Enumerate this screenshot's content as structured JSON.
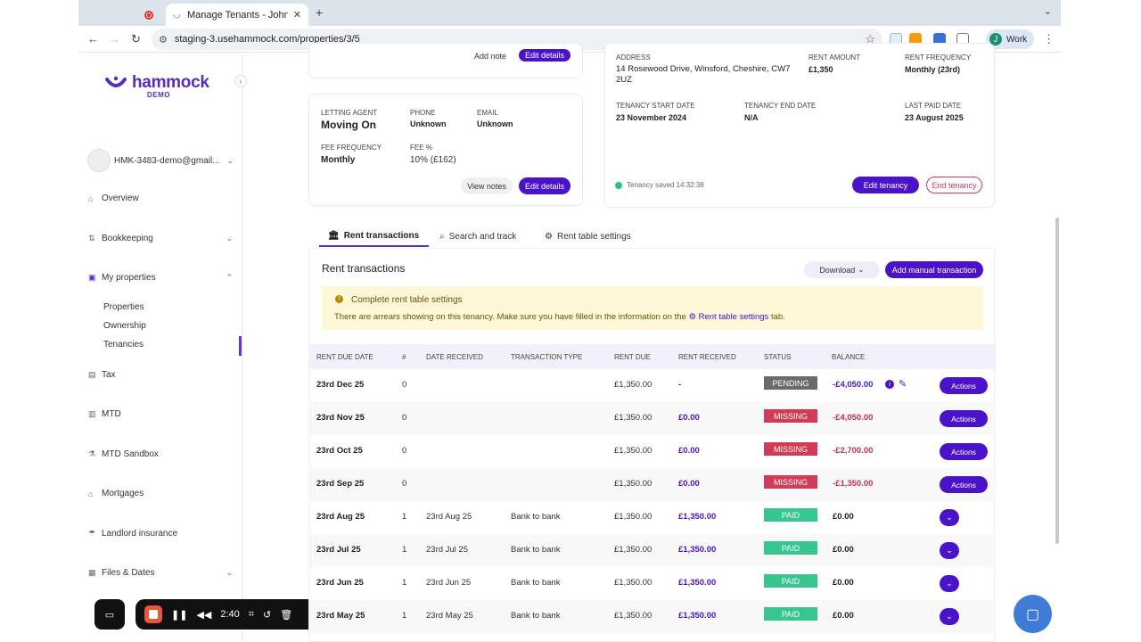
{
  "browser": {
    "tab_title": "Manage Tenants - John Smith",
    "new_tab": "+",
    "url": "staging-3.usehammock.com/properties/3/5",
    "profile": "Work",
    "profile_initial": "J"
  },
  "sidebar": {
    "logo": "hammock",
    "logo_sub": "DEMO",
    "account_email": "HMK-3483-demo@gmail...",
    "items": [
      {
        "label": "Overview",
        "icon": "home-icon"
      },
      {
        "label": "Bookkeeping",
        "icon": "sort-icon"
      },
      {
        "label": "My properties",
        "icon": "building-icon"
      },
      {
        "label": "Tax",
        "icon": "document-icon"
      },
      {
        "label": "MTD",
        "icon": "folder-icon"
      },
      {
        "label": "MTD Sandbox",
        "icon": "flask-icon"
      },
      {
        "label": "Mortgages",
        "icon": "bank-icon"
      },
      {
        "label": "Landlord insurance",
        "icon": "umbrella-icon"
      },
      {
        "label": "Files & Dates",
        "icon": "file-icon"
      }
    ],
    "sub_items": [
      "Properties",
      "Ownership",
      "Tenancies"
    ]
  },
  "recorder": {
    "time": "2:40"
  },
  "agent_card": {
    "add_note": "Add note",
    "edit_details_top": "Edit details",
    "letting_agent_label": "LETTING AGENT",
    "letting_agent": "Moving On",
    "phone_label": "PHONE",
    "phone": "Unknown",
    "email_label": "EMAIL",
    "email": "Unknown",
    "fee_frequency_label": "FEE FREQUENCY",
    "fee_frequency": "Monthly",
    "fee_pct_label": "FEE %",
    "fee_pct": "10% (£162)",
    "view_notes": "View notes",
    "edit_details": "Edit details"
  },
  "tenancy_card": {
    "address_label": "ADDRESS",
    "address": "14 Rosewood Drive, Winsford, Cheshire, CW7 2UZ",
    "rent_amount_label": "RENT AMOUNT",
    "rent_amount": "£1,350",
    "rent_frequency_label": "RENT FREQUENCY",
    "rent_frequency": "Monthly (23rd)",
    "start_label": "TENANCY START DATE",
    "start": "23 November 2024",
    "end_label": "TENANCY END DATE",
    "end": "N/A",
    "last_paid_label": "LAST PAID DATE",
    "last_paid": "23 August 2025",
    "saved": "Tenancy saved 14:32:38",
    "edit_tenancy": "Edit tenancy",
    "end_tenancy": "End tenancy"
  },
  "tabs": [
    {
      "label": "Rent transactions",
      "icon": "bank-icon"
    },
    {
      "label": "Search and track",
      "icon": "search-icon"
    },
    {
      "label": "Rent table settings",
      "icon": "gears-icon"
    }
  ],
  "panel": {
    "title": "Rent transactions",
    "download": "Download",
    "add_manual": "Add manual transaction",
    "alert_title": "Complete rent table settings",
    "alert_body_pre": "There are arrears showing on this tenancy. Make sure you have filled in the information on the",
    "alert_link": "Rent table settings",
    "alert_body_post": "tab."
  },
  "table": {
    "headers": [
      "RENT DUE DATE",
      "#",
      "DATE RECEIVED",
      "TRANSACTION TYPE",
      "RENT DUE",
      "RENT RECEIVED",
      "STATUS",
      "BALANCE"
    ],
    "rows": [
      {
        "due_date": "23rd Dec 25",
        "n": "0",
        "received_date": "",
        "type": "",
        "rent_due": "£1,350.00",
        "rent_received": "-",
        "status": "PENDING",
        "balance": "-£4,050.00",
        "action": "Actions"
      },
      {
        "due_date": "23rd Nov 25",
        "n": "0",
        "received_date": "",
        "type": "",
        "rent_due": "£1,350.00",
        "rent_received": "£0.00",
        "status": "MISSING",
        "balance": "-£4,050.00",
        "action": "Actions"
      },
      {
        "due_date": "23rd Oct 25",
        "n": "0",
        "received_date": "",
        "type": "",
        "rent_due": "£1,350.00",
        "rent_received": "£0.00",
        "status": "MISSING",
        "balance": "-£2,700.00",
        "action": "Actions"
      },
      {
        "due_date": "23rd Sep 25",
        "n": "0",
        "received_date": "",
        "type": "",
        "rent_due": "£1,350.00",
        "rent_received": "£0.00",
        "status": "MISSING",
        "balance": "-£1,350.00",
        "action": "Actions"
      },
      {
        "due_date": "23rd Aug 25",
        "n": "1",
        "received_date": "23rd Aug 25",
        "type": "Bank to bank",
        "rent_due": "£1,350.00",
        "rent_received": "£1,350.00",
        "status": "PAID",
        "balance": "£0.00",
        "action": ""
      },
      {
        "due_date": "23rd Jul 25",
        "n": "1",
        "received_date": "23rd Jul 25",
        "type": "Bank to bank",
        "rent_due": "£1,350.00",
        "rent_received": "£1,350.00",
        "status": "PAID",
        "balance": "£0.00",
        "action": ""
      },
      {
        "due_date": "23rd Jun 25",
        "n": "1",
        "received_date": "23rd Jun 25",
        "type": "Bank to bank",
        "rent_due": "£1,350.00",
        "rent_received": "£1,350.00",
        "status": "PAID",
        "balance": "£0.00",
        "action": ""
      },
      {
        "due_date": "23rd May 25",
        "n": "1",
        "received_date": "23rd May 25",
        "type": "Bank to bank",
        "rent_due": "£1,350.00",
        "rent_received": "£1,350.00",
        "status": "PAID",
        "balance": "£0.00",
        "action": ""
      }
    ]
  },
  "colors": {
    "brand": "#5b2bc1",
    "button": "#4a13c9",
    "missing": "#d23b55",
    "paid": "#37c690",
    "pending": "#6b6b6b"
  }
}
